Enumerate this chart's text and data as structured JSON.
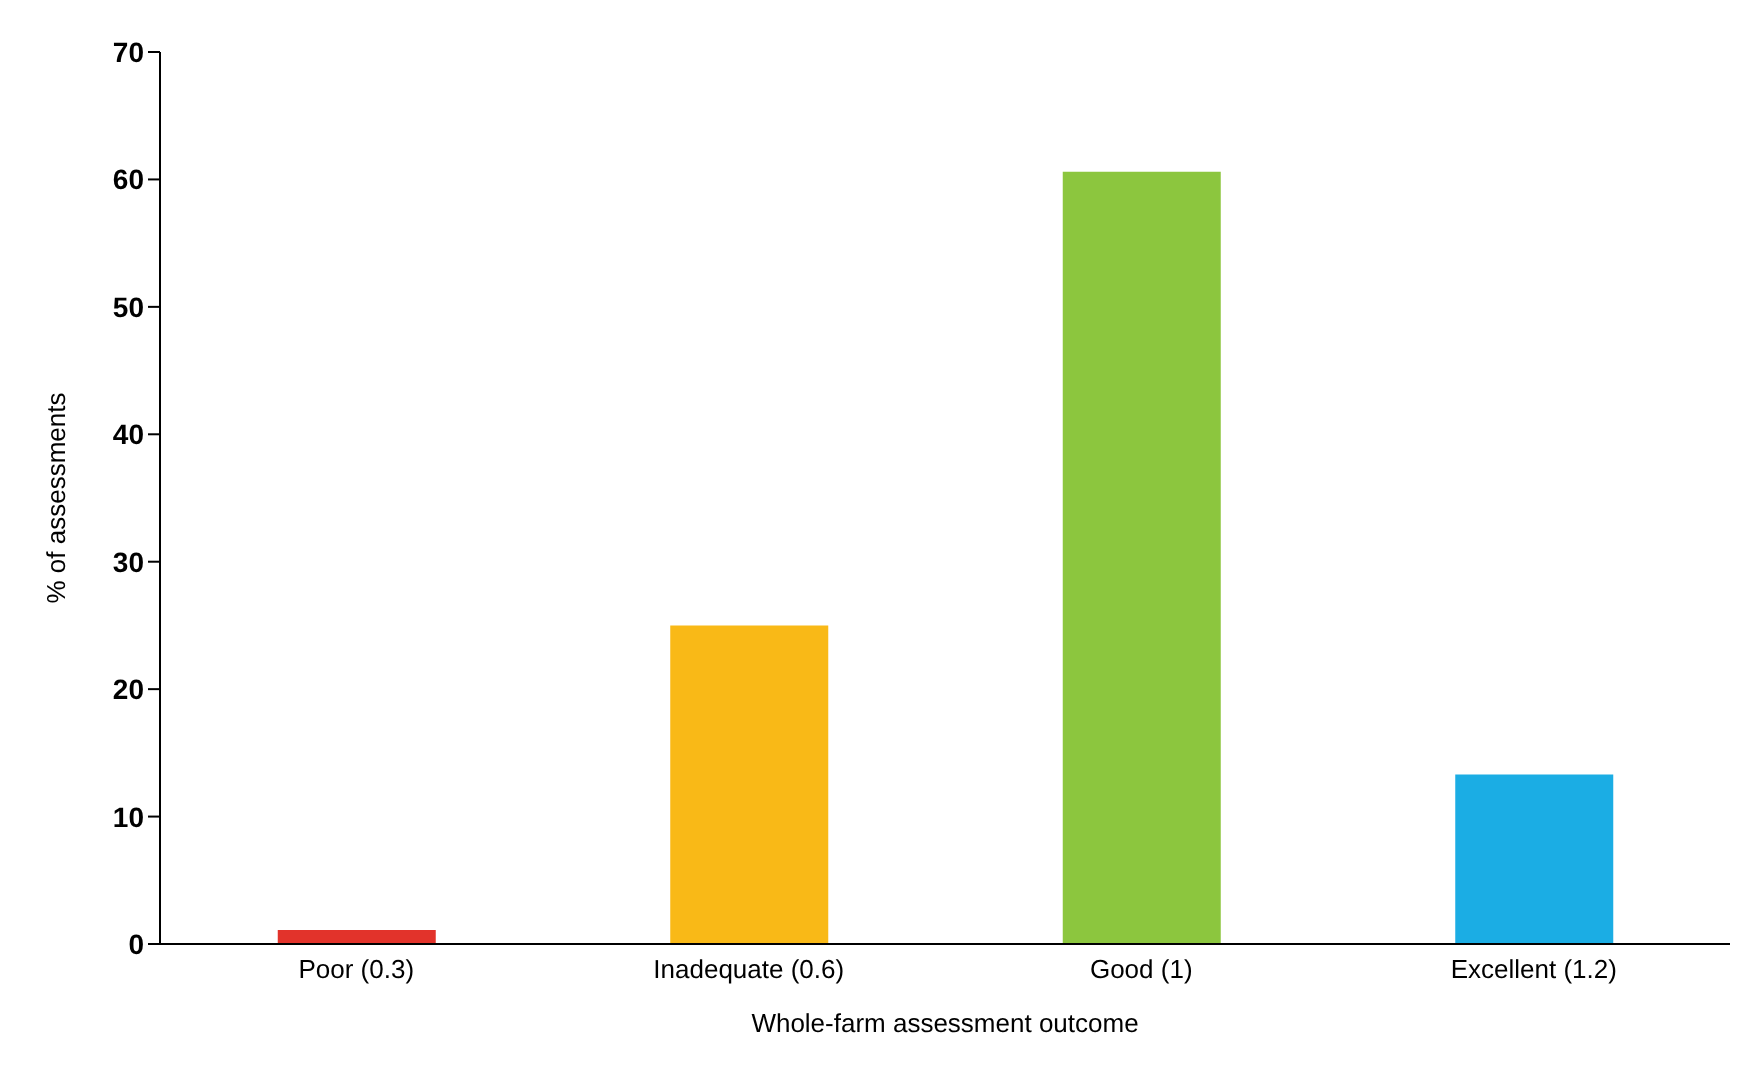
{
  "chart_data": {
    "type": "bar",
    "xlabel": "Whole-farm assessment outcome",
    "ylabel": "% of assessments",
    "categories": [
      "Poor (0.3)",
      "Inadequate (0.6)",
      "Good (1)",
      "Excellent (1.2)"
    ],
    "values": [
      1.1,
      25,
      60.6,
      13.3
    ],
    "colors": [
      "#e2332b",
      "#f9b917",
      "#8cc63e",
      "#1bade4"
    ],
    "ylim": [
      0,
      70
    ],
    "yticks": [
      0,
      10,
      20,
      30,
      40,
      50,
      60,
      70
    ],
    "grid": false
  }
}
